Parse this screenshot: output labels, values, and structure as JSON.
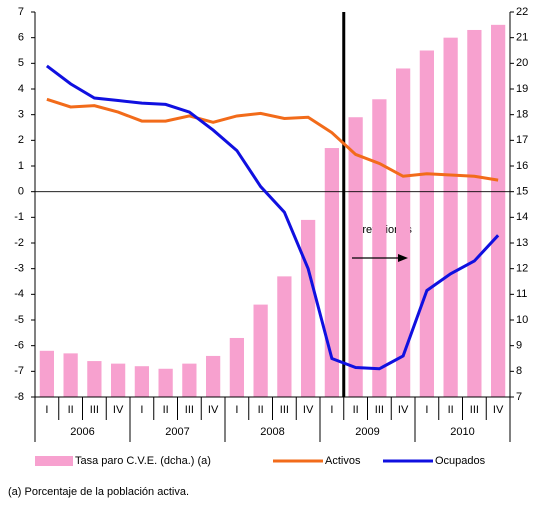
{
  "chart_data": {
    "type": "bar_line",
    "categories": [
      "I",
      "II",
      "III",
      "IV",
      "I",
      "II",
      "III",
      "IV",
      "I",
      "II",
      "III",
      "IV",
      "I",
      "II",
      "III",
      "IV",
      "I",
      "II",
      "III",
      "IV"
    ],
    "groups": [
      "2006",
      "2007",
      "2008",
      "2009",
      "2010"
    ],
    "series": [
      {
        "name": "Tasa paro C.V.E. (dcha.) (a)",
        "type": "bar",
        "axis": "y2",
        "color": "#f7a1cf",
        "values": [
          8.8,
          8.7,
          8.4,
          8.3,
          8.2,
          8.1,
          8.3,
          8.6,
          9.3,
          10.6,
          11.7,
          13.9,
          16.7,
          17.9,
          18.6,
          19.8,
          20.5,
          21.0,
          21.3,
          21.5
        ]
      },
      {
        "name": "Activos",
        "type": "line",
        "color": "#f26b1a",
        "values": [
          3.6,
          3.3,
          3.35,
          3.1,
          2.75,
          2.75,
          2.95,
          2.7,
          2.95,
          3.05,
          2.85,
          2.9,
          2.3,
          1.45,
          1.1,
          0.6,
          0.7,
          0.65,
          0.6,
          0.45
        ]
      },
      {
        "name": "Ocupados",
        "type": "line",
        "color": "#1010e0",
        "values": [
          4.9,
          4.2,
          3.65,
          3.55,
          3.45,
          3.4,
          3.1,
          2.4,
          1.6,
          0.2,
          -0.8,
          -3.0,
          -6.5,
          -6.85,
          -6.9,
          -6.4,
          -3.85,
          -3.2,
          -2.7,
          -1.7
        ]
      }
    ],
    "ylim": [
      -8,
      7
    ],
    "yticks": [
      -8,
      -7,
      -6,
      -5,
      -4,
      -3,
      -2,
      -1,
      0,
      1,
      2,
      3,
      4,
      5,
      6,
      7
    ],
    "y2lim": [
      7,
      22
    ],
    "y2ticks": [
      7,
      8,
      9,
      10,
      11,
      12,
      13,
      14,
      15,
      16,
      17,
      18,
      19,
      20,
      21,
      22
    ],
    "annotation": "Previsiones",
    "footnote": "(a) Porcentaje de la población activa."
  }
}
